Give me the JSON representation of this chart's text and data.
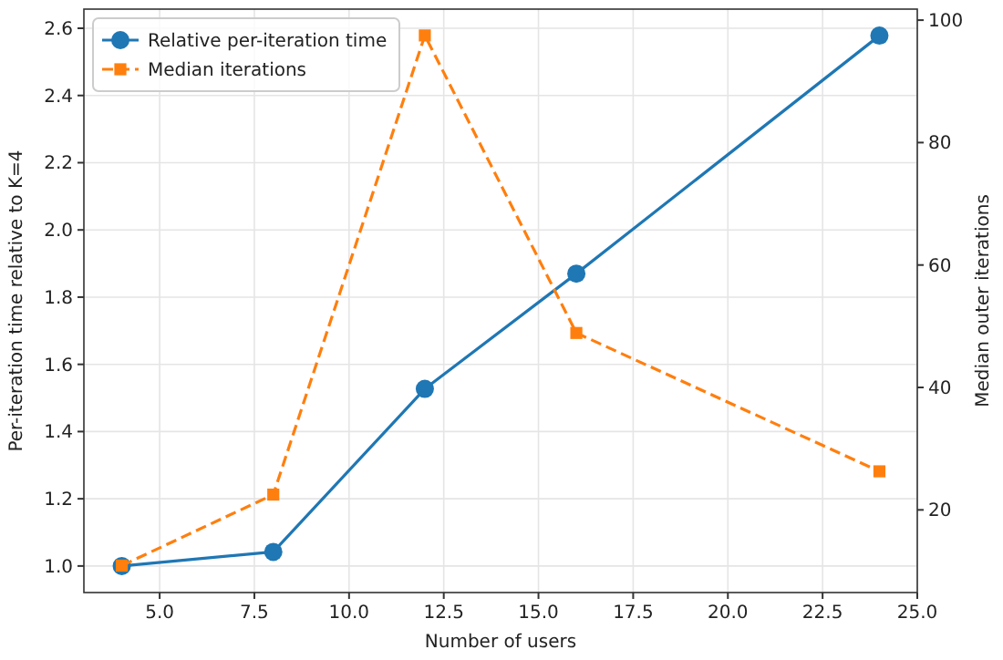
{
  "chart_data": {
    "type": "line",
    "xlabel": "Number of users",
    "ylabel": "Per-iteration time relative to K=4",
    "y2label": "Median outer iterations",
    "x": [
      4,
      8,
      12,
      16,
      24
    ],
    "series": [
      {
        "name": "Relative per-iteration time",
        "color": "#1f77b4",
        "values": [
          1.0,
          1.042,
          1.527,
          1.87,
          2.578
        ],
        "marker": "circle",
        "line_style": "solid"
      },
      {
        "name": "Median iterations",
        "color": "#ff7f0e",
        "values": [
          10.9,
          22.5,
          97.5,
          48.9,
          26.3
        ],
        "marker": "square",
        "line_style": "dashed",
        "axis": "y2"
      }
    ],
    "xlim": [
      3,
      25
    ],
    "xticks": [
      {
        "value": 5,
        "label": "5.0"
      },
      {
        "value": 7.5,
        "label": "7.5"
      },
      {
        "value": 10,
        "label": "10.0"
      },
      {
        "value": 12.5,
        "label": "12.5"
      },
      {
        "value": 15,
        "label": "15.0"
      },
      {
        "value": 17.5,
        "label": "17.5"
      },
      {
        "value": 20,
        "label": "20.0"
      },
      {
        "value": 22.5,
        "label": "22.5"
      },
      {
        "value": 25,
        "label": "25.0"
      }
    ],
    "ylim": [
      0.921,
      2.657
    ],
    "yticks": [
      {
        "value": 1,
        "label": "1.0"
      },
      {
        "value": 1.2,
        "label": "1.2"
      },
      {
        "value": 1.4,
        "label": "1.4"
      },
      {
        "value": 1.6,
        "label": "1.6"
      },
      {
        "value": 1.8,
        "label": "1.8"
      },
      {
        "value": 2,
        "label": "2.0"
      },
      {
        "value": 2.2,
        "label": "2.2"
      },
      {
        "value": 2.4,
        "label": "2.4"
      },
      {
        "value": 2.6,
        "label": "2.6"
      }
    ],
    "y2lim": [
      6.5,
      101.8
    ],
    "y2ticks": [
      20,
      40,
      60,
      80,
      100
    ],
    "grid": true,
    "legend": "top left"
  }
}
